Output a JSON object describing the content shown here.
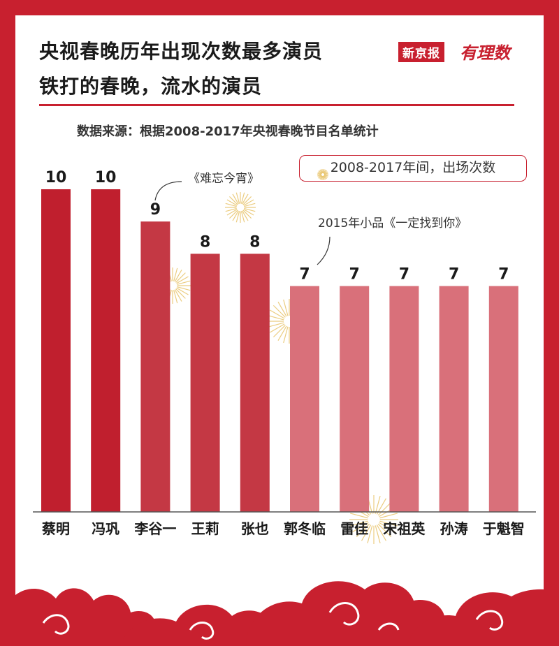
{
  "header": {
    "title_line1": "央视春晚历年出现次数最多演员",
    "title_line2": "铁打的春晚，流水的演员",
    "brand_name": "新京报",
    "brand_sub": "有理数"
  },
  "source": "数据来源：根据2008-2017年央视春晚节目名单统计",
  "legend": "2008-2017年间，出场次数",
  "annotations": {
    "note1": "《难忘今宵》",
    "note2": "2015年小品《一定找到你》"
  },
  "colors": {
    "background": "#c8202f",
    "bar_dark": "#c01f2e",
    "bar_light": "#d9707a",
    "firework": "#e8c46a"
  },
  "chart_data": {
    "type": "bar",
    "title": "央视春晚历年出现次数最多演员",
    "categories": [
      "蔡明",
      "冯巩",
      "李谷一",
      "王莉",
      "张也",
      "郭冬临",
      "雷佳",
      "宋祖英",
      "孙涛",
      "于魁智"
    ],
    "values": [
      10,
      10,
      9,
      8,
      8,
      7,
      7,
      7,
      7,
      7
    ],
    "ylim": [
      0,
      10
    ],
    "grid": false,
    "legend": "2008-2017年间，出场次数"
  }
}
